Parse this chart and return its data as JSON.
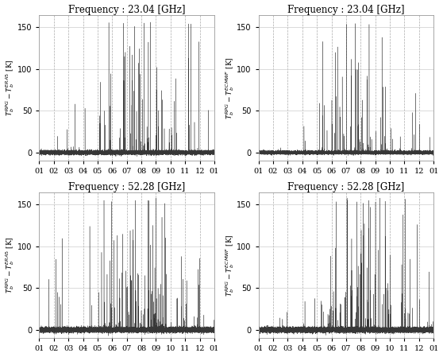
{
  "titles": [
    "Frequency : 23.04 [GHz]",
    "Frequency : 23.04 [GHz]",
    "Frequency : 52.28 [GHz]",
    "Frequency : 52.28 [GHz]"
  ],
  "ylabels": [
    "$T_b^{RPG} - T_b^{ERA5}$ [K]",
    "$T_b^{RPG} - T_b^{ECMWF}$ [K]",
    "$T_b^{RPG} - T_b^{ERA5}$ [K]",
    "$T_b^{RPG} - T_b^{ECMWF}$ [K]"
  ],
  "xtick_labels": [
    "01",
    "02",
    "03",
    "04",
    "05",
    "06",
    "07",
    "08",
    "09",
    "10",
    "11",
    "12",
    "01"
  ],
  "ylim": [
    -10,
    165
  ],
  "yticks": [
    0,
    50,
    100,
    150
  ],
  "bg_color": "#ffffff",
  "line_color": "#222222",
  "grid_color_h": "#cccccc",
  "grid_color_v": "#aaaaaa",
  "title_fontsize": 8.5,
  "label_fontsize": 6.5,
  "tick_fontsize": 7,
  "n_points": 17520,
  "figsize": [
    5.58,
    4.49
  ],
  "dpi": 100
}
